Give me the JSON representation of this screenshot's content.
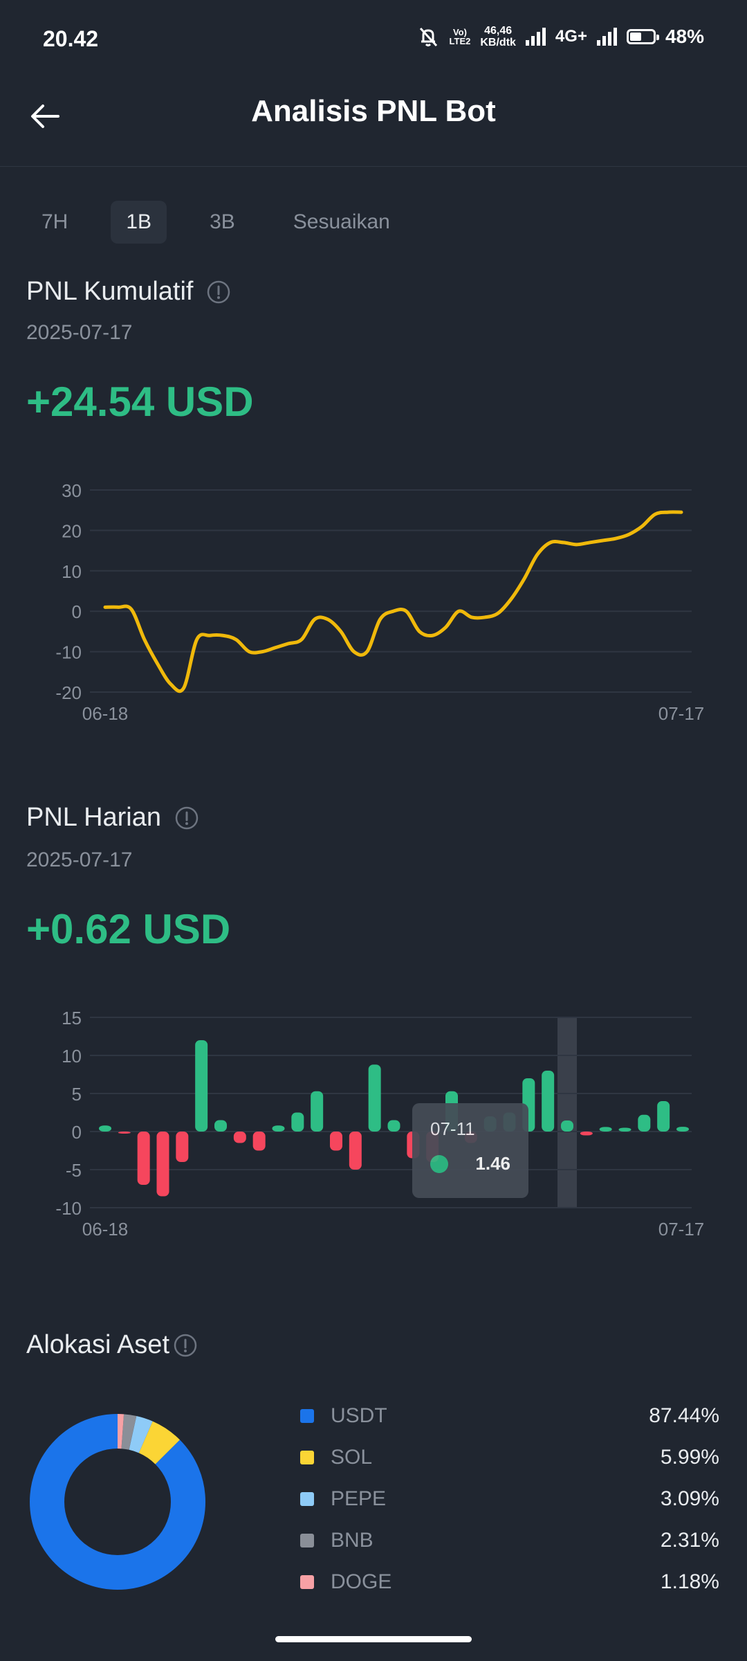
{
  "status_bar": {
    "time": "20.42",
    "volte_top": "Vo)",
    "volte_bottom": "LTE2",
    "speed_value": "46,46",
    "speed_unit": "KB/dtk",
    "network": "4G+",
    "battery": "48%"
  },
  "header": {
    "title": "Analisis PNL Bot",
    "back_icon": "arrow-left-icon"
  },
  "tabs": [
    {
      "label": "7H",
      "active": false
    },
    {
      "label": "1B",
      "active": true
    },
    {
      "label": "3B",
      "active": false
    },
    {
      "label": "Sesuaikan",
      "active": false
    }
  ],
  "cumulative": {
    "title": "PNL Kumulatif",
    "date": "2025-07-17",
    "value": "+24.54 USD"
  },
  "daily": {
    "title": "PNL Harian",
    "date": "2025-07-17",
    "value": "+0.62 USD",
    "tooltip": {
      "date": "07-11",
      "value": "1.46"
    }
  },
  "allocation": {
    "title": "Alokasi Aset",
    "items": [
      {
        "name": "USDT",
        "pct": "87.44%",
        "value": 87.44,
        "color": "#1b74ea"
      },
      {
        "name": "SOL",
        "pct": "5.99%",
        "value": 5.99,
        "color": "#fbd535"
      },
      {
        "name": "PEPE",
        "pct": "3.09%",
        "value": 3.09,
        "color": "#8ecbf7"
      },
      {
        "name": "BNB",
        "pct": "2.31%",
        "value": 2.31,
        "color": "#8a8f98"
      },
      {
        "name": "DOGE",
        "pct": "1.18%",
        "value": 1.18,
        "color": "#f7a1a5"
      }
    ]
  },
  "colors": {
    "positive": "#2ebd85",
    "negative": "#f6465d",
    "line": "#f0b90b"
  },
  "chart_data": [
    {
      "type": "line",
      "title": "PNL Kumulatif",
      "x_tick_labels": [
        "06-18",
        "07-17"
      ],
      "y_ticks": [
        30,
        20,
        10,
        0,
        -10,
        -20
      ],
      "ylim": [
        -20,
        30
      ],
      "grid": true,
      "series": [
        {
          "values": [
            1,
            1,
            0.5,
            -7,
            -13,
            -18,
            -19,
            -7,
            -6,
            -6,
            -7,
            -10,
            -10,
            -9,
            -8,
            -7,
            -2,
            -2,
            -5,
            -10,
            -10,
            -2,
            0,
            0,
            -5,
            -6,
            -4,
            0,
            -1.5,
            -1.5,
            -0.5,
            3,
            8,
            14,
            17,
            17,
            16.5,
            17,
            17.5,
            18,
            19,
            21,
            24,
            24.5,
            24.5
          ]
        }
      ]
    },
    {
      "type": "bar",
      "title": "PNL Harian",
      "x_tick_labels": [
        "06-18",
        "07-17"
      ],
      "y_ticks": [
        15,
        10,
        5,
        0,
        -5,
        -10
      ],
      "ylim": [
        -10,
        15
      ],
      "grid": true,
      "highlighted_index": 24,
      "values": [
        0.8,
        -0.1,
        -7,
        -8.5,
        -4,
        12,
        1.5,
        -1.5,
        -2.5,
        0.8,
        2.5,
        5.3,
        -2.5,
        -5,
        8.8,
        1.5,
        -3.5,
        -4,
        5.3,
        -1.5,
        2,
        2.5,
        7,
        8,
        1.46,
        -0.5,
        0.6,
        0.5,
        2.2,
        4,
        0.62
      ]
    },
    {
      "type": "pie",
      "title": "Alokasi Aset",
      "categories": [
        "USDT",
        "SOL",
        "PEPE",
        "BNB",
        "DOGE"
      ],
      "values": [
        87.44,
        5.99,
        3.09,
        2.31,
        1.18
      ],
      "legend": "right"
    }
  ]
}
